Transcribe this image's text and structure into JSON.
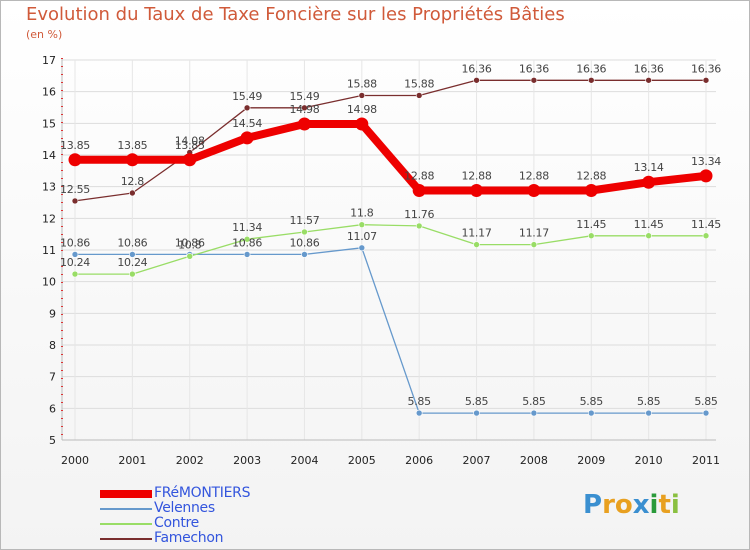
{
  "title": "Evolution du Taux de Taxe Foncière sur les Propriétés Bâties",
  "subtitle": "(en %)",
  "logo": {
    "letters": [
      "P",
      "r",
      "o",
      "x",
      "i",
      "t",
      "i"
    ],
    "colors": [
      "#3a8fd0",
      "#e8a020",
      "#e8a020",
      "#3a8fd0",
      "#2a9a3a",
      "#e8a020",
      "#8ac040"
    ]
  },
  "chart_data": {
    "type": "line",
    "title": "Evolution du Taux de Taxe Foncière sur les Propriétés Bâties",
    "ylabel": "(en %)",
    "xlabel": "",
    "x": [
      "2000",
      "2001",
      "2002",
      "2003",
      "2004",
      "2005",
      "2006",
      "2007",
      "2008",
      "2009",
      "2010",
      "2011"
    ],
    "ylim": [
      5,
      17
    ],
    "yticks": [
      5,
      6,
      7,
      8,
      9,
      10,
      11,
      12,
      13,
      14,
      15,
      16,
      17
    ],
    "legend_position": "bottom-left",
    "series": [
      {
        "name": "FRéMONTIERS",
        "color": "#ee0000",
        "bold": true,
        "values": [
          13.85,
          13.85,
          13.85,
          14.54,
          14.98,
          14.98,
          12.88,
          12.88,
          12.88,
          12.88,
          13.14,
          13.34
        ],
        "labels": [
          "13.85",
          "13.85",
          "13.85",
          "14.54",
          "14.98",
          "14.98",
          "12.88",
          "12.88",
          "12.88",
          "12.88",
          "13.14",
          "13.34"
        ]
      },
      {
        "name": "Velennes",
        "color": "#6699cc",
        "bold": false,
        "values": [
          10.86,
          10.86,
          10.86,
          10.86,
          10.86,
          11.07,
          5.85,
          5.85,
          5.85,
          5.85,
          5.85,
          5.85
        ],
        "labels": [
          "10.86",
          "10.86",
          "10.86",
          "10.86",
          "10.86",
          "11.07",
          "5.85",
          "5.85",
          "5.85",
          "5.85",
          "5.85",
          "5.85"
        ]
      },
      {
        "name": "Contre",
        "color": "#99dd66",
        "bold": false,
        "values": [
          10.24,
          10.24,
          10.8,
          11.34,
          11.57,
          11.8,
          11.76,
          11.17,
          11.17,
          11.45,
          11.45,
          11.45
        ],
        "labels": [
          "10.24",
          "10.24",
          "10.8",
          "11.34",
          "11.57",
          "11.8",
          "11.76",
          "11.17",
          "11.17",
          "11.45",
          "11.45",
          "11.45"
        ]
      },
      {
        "name": "Famechon",
        "color": "#7a2e2e",
        "bold": false,
        "values": [
          12.55,
          12.8,
          14.08,
          15.49,
          15.49,
          15.88,
          15.88,
          16.36,
          16.36,
          16.36,
          16.36,
          16.36
        ],
        "labels": [
          "12.55",
          "12.8",
          "14.08",
          "15.49",
          "15.49",
          "15.88",
          "15.88",
          "16.36",
          "16.36",
          "16.36",
          "16.36",
          "16.36"
        ]
      }
    ]
  }
}
